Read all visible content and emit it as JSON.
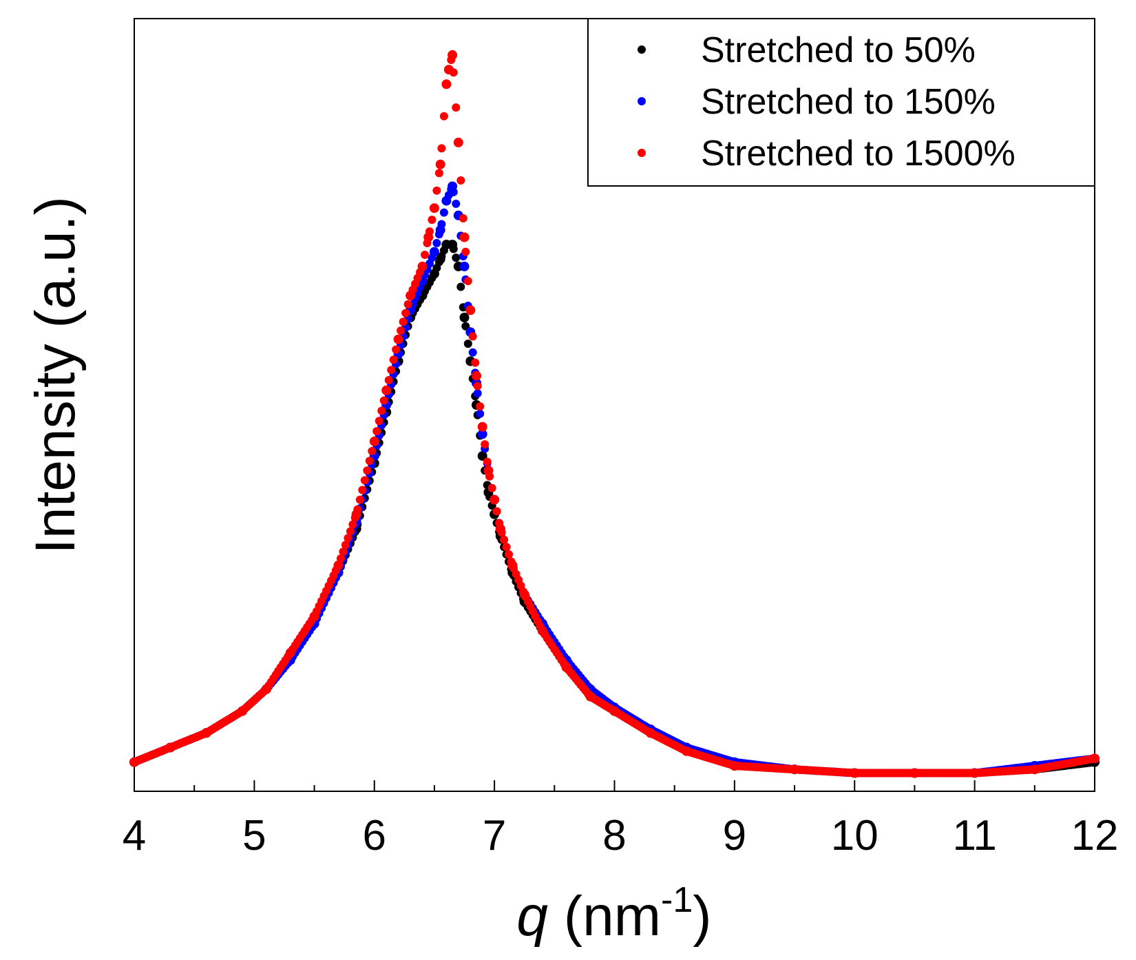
{
  "chart_data": {
    "type": "scatter",
    "title": "",
    "xlabel_var": "q",
    "xlabel_units_open": " (nm",
    "xlabel_exp": "-1",
    "xlabel_units_close": ")",
    "ylabel": "Intensity (a.u.)",
    "xlim": [
      4,
      12
    ],
    "ylim": [
      0.96,
      2.02
    ],
    "y_ticks_labeled": false,
    "grid": false,
    "legend_position": "top-right",
    "x_ticks": [
      {
        "v": 4,
        "label": "4"
      },
      {
        "v": 5,
        "label": "5"
      },
      {
        "v": 6,
        "label": "6"
      },
      {
        "v": 7,
        "label": "7"
      },
      {
        "v": 8,
        "label": "8"
      },
      {
        "v": 9,
        "label": "9"
      },
      {
        "v": 10,
        "label": "10"
      },
      {
        "v": 11,
        "label": "11"
      },
      {
        "v": 12,
        "label": "12"
      }
    ],
    "series": [
      {
        "name": "Stretched to 50%",
        "color": "#000000",
        "x": [
          4.0,
          4.3,
          4.6,
          4.9,
          5.1,
          5.3,
          5.5,
          5.7,
          5.85,
          6.0,
          6.1,
          6.2,
          6.3,
          6.4,
          6.5,
          6.55,
          6.6,
          6.65,
          6.7,
          6.75,
          6.8,
          6.85,
          6.9,
          6.95,
          7.0,
          7.05,
          7.15,
          7.25,
          7.4,
          7.6,
          7.8,
          8.0,
          8.3,
          8.6,
          9.0,
          9.5,
          10.0,
          10.5,
          11.0,
          11.5,
          12.0
        ],
        "y": [
          1.0,
          1.02,
          1.04,
          1.07,
          1.1,
          1.14,
          1.19,
          1.26,
          1.32,
          1.41,
          1.48,
          1.55,
          1.61,
          1.64,
          1.67,
          1.69,
          1.71,
          1.71,
          1.68,
          1.61,
          1.55,
          1.49,
          1.42,
          1.37,
          1.34,
          1.31,
          1.26,
          1.22,
          1.18,
          1.13,
          1.09,
          1.07,
          1.04,
          1.02,
          0.995,
          0.99,
          0.985,
          0.985,
          0.985,
          0.99,
          1.0
        ]
      },
      {
        "name": "Stretched to 150%",
        "color": "#0000ff",
        "x": [
          4.0,
          4.3,
          4.6,
          4.9,
          5.1,
          5.3,
          5.5,
          5.7,
          5.85,
          6.0,
          6.1,
          6.2,
          6.3,
          6.4,
          6.5,
          6.55,
          6.6,
          6.65,
          6.7,
          6.75,
          6.8,
          6.85,
          6.9,
          6.95,
          7.0,
          7.05,
          7.15,
          7.25,
          7.4,
          7.6,
          7.8,
          8.0,
          8.3,
          8.6,
          9.0,
          9.5,
          10.0,
          10.5,
          11.0,
          11.5,
          12.0
        ],
        "y": [
          1.0,
          1.02,
          1.04,
          1.07,
          1.1,
          1.14,
          1.19,
          1.26,
          1.33,
          1.42,
          1.49,
          1.56,
          1.62,
          1.66,
          1.7,
          1.73,
          1.77,
          1.79,
          1.75,
          1.68,
          1.59,
          1.52,
          1.45,
          1.4,
          1.36,
          1.32,
          1.27,
          1.23,
          1.19,
          1.14,
          1.1,
          1.075,
          1.045,
          1.02,
          1.0,
          0.99,
          0.985,
          0.985,
          0.985,
          0.995,
          1.005
        ]
      },
      {
        "name": "Stretched to 1500%",
        "color": "#ff0000",
        "x": [
          4.0,
          4.3,
          4.6,
          4.9,
          5.1,
          5.3,
          5.5,
          5.7,
          5.85,
          6.0,
          6.1,
          6.2,
          6.3,
          6.4,
          6.45,
          6.5,
          6.55,
          6.6,
          6.62,
          6.65,
          6.7,
          6.75,
          6.8,
          6.85,
          6.9,
          6.95,
          7.0,
          7.05,
          7.15,
          7.25,
          7.4,
          7.6,
          7.8,
          8.0,
          8.3,
          8.6,
          9.0,
          9.5,
          10.0,
          10.5,
          11.0,
          11.5,
          12.0
        ],
        "y": [
          1.0,
          1.02,
          1.04,
          1.07,
          1.1,
          1.15,
          1.2,
          1.27,
          1.34,
          1.44,
          1.51,
          1.58,
          1.64,
          1.68,
          1.72,
          1.76,
          1.82,
          1.93,
          1.95,
          1.97,
          1.85,
          1.72,
          1.62,
          1.53,
          1.46,
          1.4,
          1.36,
          1.32,
          1.27,
          1.23,
          1.18,
          1.13,
          1.09,
          1.07,
          1.04,
          1.015,
          0.995,
          0.99,
          0.985,
          0.985,
          0.985,
          0.99,
          1.005
        ]
      }
    ]
  }
}
